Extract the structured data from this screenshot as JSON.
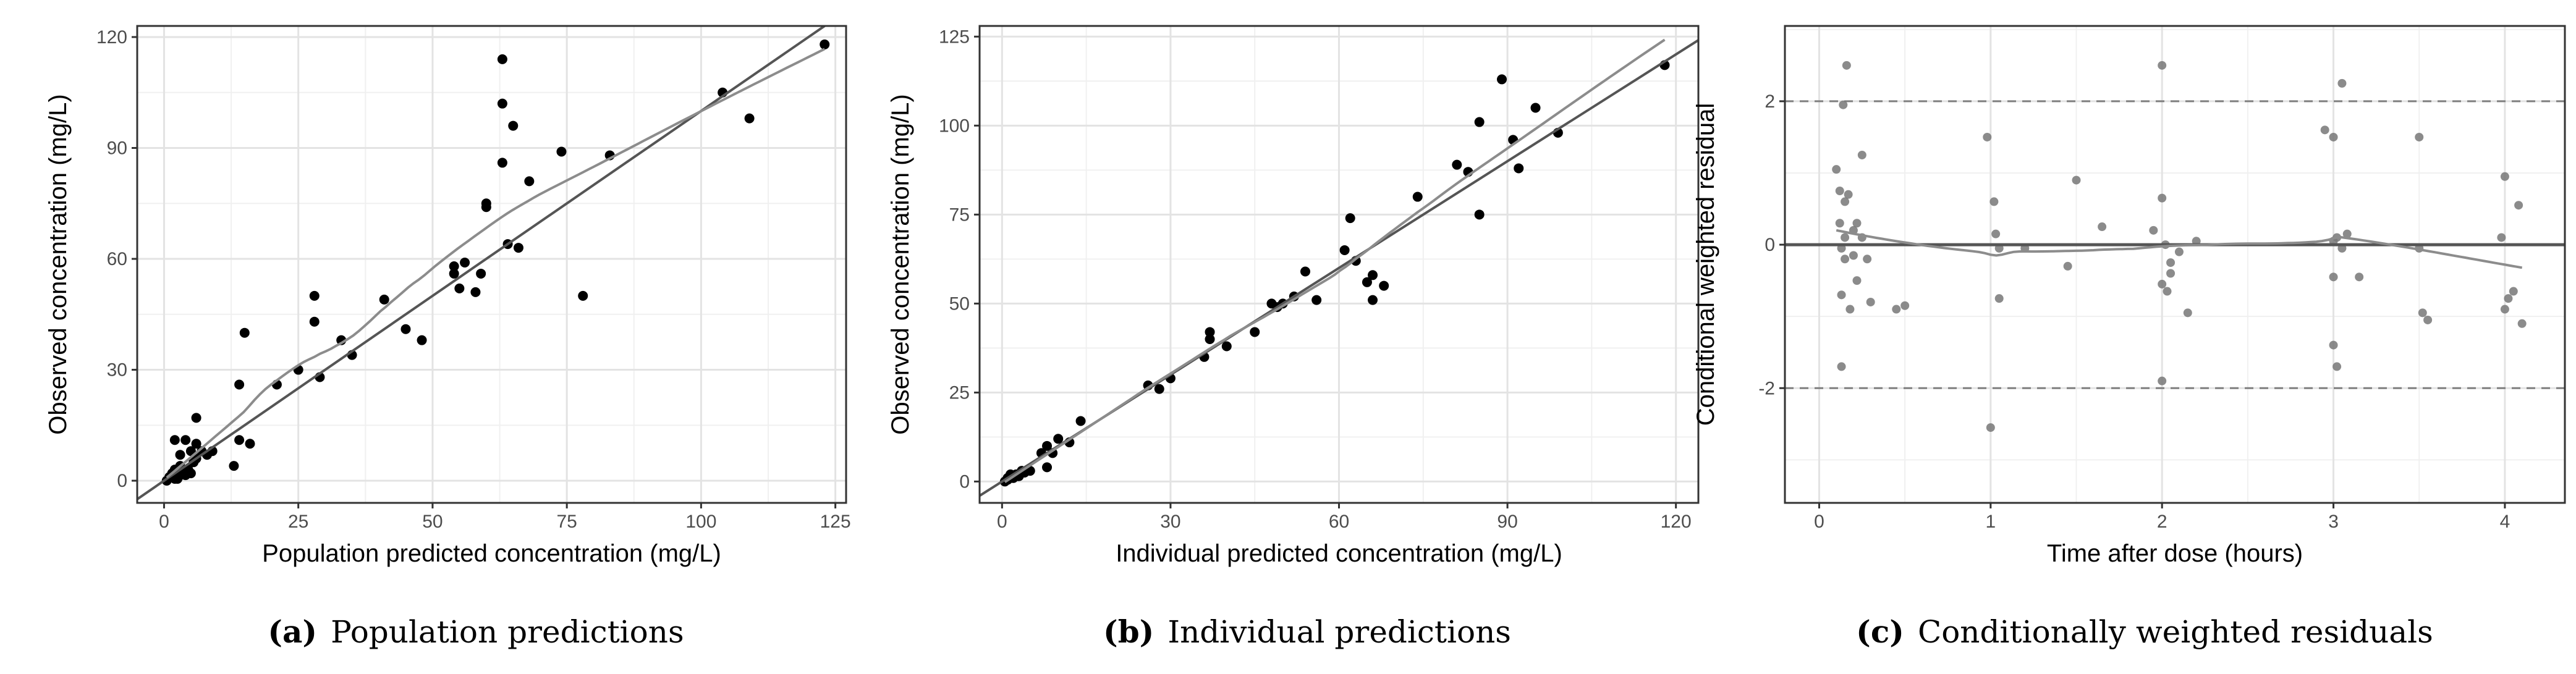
{
  "figure": {
    "panels": [
      {
        "caption_letter": "(a)",
        "caption_text": "Population predictions"
      },
      {
        "caption_letter": "(b)",
        "caption_text": "Individual predictions"
      },
      {
        "caption_letter": "(c)",
        "caption_text": "Conditionally weighted residuals"
      }
    ]
  },
  "chart_data": [
    {
      "type": "scatter",
      "title": "",
      "xlabel": "Population predicted concentration (mg/L)",
      "ylabel": "Observed concentration (mg/L)",
      "xlim": [
        -5,
        127
      ],
      "ylim": [
        -6,
        123
      ],
      "xticks": [
        0,
        25,
        50,
        75,
        100,
        125
      ],
      "yticks": [
        0,
        30,
        60,
        90,
        120
      ],
      "grid": true,
      "point_color": "#000000",
      "x": [
        0.5,
        1,
        1.5,
        2,
        2.5,
        3,
        1,
        2,
        3,
        4,
        4.5,
        5,
        5.5,
        6,
        3,
        4,
        5,
        6,
        7,
        8,
        2,
        3,
        6,
        9,
        13,
        14,
        15,
        14,
        16,
        21,
        25,
        28,
        28,
        29,
        33,
        35,
        41,
        45,
        48,
        54,
        54,
        55,
        56,
        58,
        59,
        60,
        60,
        63,
        63,
        63,
        64,
        65,
        66,
        68,
        74,
        78,
        83,
        104,
        109,
        123
      ],
      "y": [
        0,
        1,
        2,
        3,
        0.5,
        1.5,
        1,
        0.5,
        2,
        1.5,
        3,
        2,
        5,
        10,
        4,
        11,
        8,
        17,
        8,
        7,
        11,
        7,
        6,
        8,
        4,
        26,
        40,
        11,
        10,
        26,
        30,
        50,
        43,
        28,
        38,
        34,
        49,
        41,
        38,
        56,
        58,
        52,
        59,
        51,
        56,
        75,
        74,
        86,
        114,
        102,
        64,
        96,
        63,
        81,
        89,
        50,
        88,
        105,
        98,
        118
      ]
    },
    {
      "type": "scatter",
      "title": "",
      "xlabel": "Individual predicted concentration (mg/L)",
      "ylabel": "Observed concentration (mg/L)",
      "xlim": [
        -4,
        124
      ],
      "ylim": [
        -6,
        128
      ],
      "xticks": [
        0,
        30,
        60,
        90,
        120
      ],
      "yticks": [
        0,
        25,
        50,
        75,
        100,
        125
      ],
      "grid": true,
      "point_color": "#000000",
      "x": [
        0.5,
        1,
        1.5,
        2,
        2.5,
        3,
        3.5,
        1,
        2,
        3,
        4,
        5,
        7,
        8,
        8,
        9,
        10,
        12,
        14,
        26,
        28,
        30,
        36,
        37,
        37,
        40,
        45,
        48,
        49,
        50,
        52,
        54,
        56,
        61,
        62,
        63,
        65,
        66,
        66,
        68,
        74,
        81,
        83,
        85,
        85,
        89,
        91,
        92,
        95,
        99,
        118
      ],
      "y": [
        0,
        1,
        2,
        1,
        2,
        1.5,
        3,
        0.5,
        1,
        2,
        2.5,
        3,
        8,
        4,
        10,
        8,
        12,
        11,
        17,
        27,
        26,
        29,
        35,
        42,
        40,
        38,
        42,
        50,
        49,
        50,
        52,
        59,
        51,
        65,
        74,
        62,
        56,
        58,
        51,
        55,
        80,
        89,
        87,
        101,
        75,
        113,
        96,
        88,
        105,
        98,
        117
      ]
    },
    {
      "type": "scatter",
      "title": "",
      "xlabel": "Time after dose (hours)",
      "ylabel": "Conditional weighted residual",
      "xlim": [
        -0.2,
        4.35
      ],
      "ylim": [
        -3.6,
        3.05
      ],
      "xticks": [
        0,
        1,
        2,
        3,
        4
      ],
      "yticks": [
        -2,
        0,
        2
      ],
      "grid": true,
      "reference_lines": [
        -2,
        2
      ],
      "point_color": "#777777",
      "x": [
        0.1,
        0.12,
        0.12,
        0.13,
        0.13,
        0.13,
        0.14,
        0.15,
        0.15,
        0.15,
        0.16,
        0.17,
        0.18,
        0.2,
        0.2,
        0.22,
        0.22,
        0.25,
        0.25,
        0.28,
        0.3,
        0.45,
        0.5,
        0.98,
        1,
        1.02,
        1.03,
        1.05,
        1.05,
        1.2,
        1.45,
        1.5,
        1.65,
        1.95,
        2,
        2,
        2,
        2,
        2.02,
        2.03,
        2.05,
        2.05,
        2.1,
        2.15,
        2.2,
        2.95,
        3,
        3,
        3,
        3,
        3.02,
        3.02,
        3.05,
        3.05,
        3.08,
        3.15,
        3.5,
        3.5,
        3.52,
        3.55,
        3.98,
        4,
        4,
        4.02,
        4.05,
        4.08,
        4.1
      ],
      "y": [
        1.05,
        0.75,
        0.3,
        -0.05,
        -0.7,
        -1.7,
        1.95,
        0.6,
        0.1,
        -0.2,
        2.5,
        0.7,
        -0.9,
        0.2,
        -0.15,
        0.3,
        -0.5,
        1.25,
        0.1,
        -0.2,
        -0.8,
        -0.9,
        -0.85,
        1.5,
        -2.55,
        0.6,
        0.15,
        -0.75,
        -0.05,
        -0.05,
        -0.3,
        0.9,
        0.25,
        0.2,
        2.5,
        0.65,
        -0.55,
        -1.9,
        0,
        -0.65,
        -0.4,
        -0.25,
        -0.1,
        -0.95,
        0.05,
        1.6,
        1.5,
        -0.45,
        0.05,
        -1.4,
        -1.7,
        0.1,
        -0.05,
        2.25,
        0.15,
        -0.45,
        1.5,
        -0.05,
        -0.95,
        -1.05,
        0.1,
        -0.9,
        0.95,
        -0.75,
        -0.65,
        0.55,
        -1.1
      ]
    }
  ]
}
